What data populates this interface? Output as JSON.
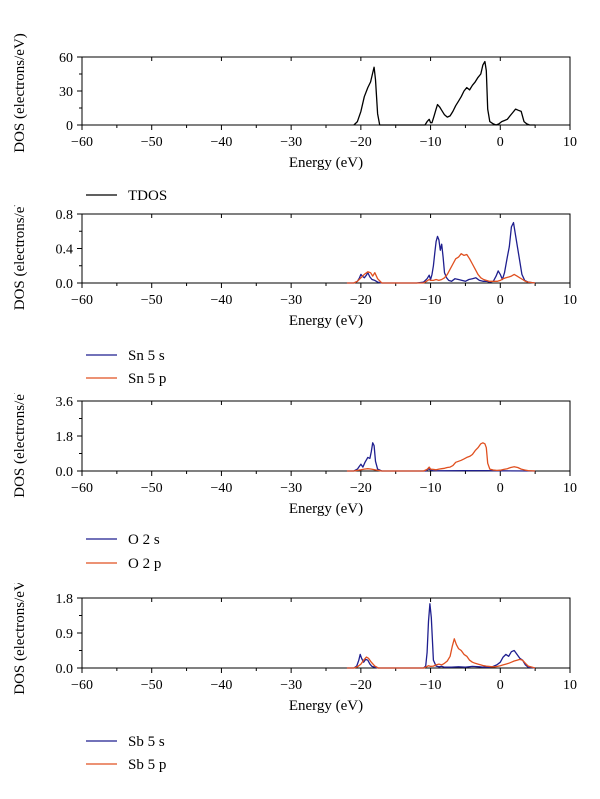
{
  "chart_data": [
    {
      "type": "line",
      "xlabel": "Energy (eV)",
      "ylabel": "DOS (electrons/eV)",
      "xlim": [
        -60,
        10
      ],
      "ylim": [
        0,
        60
      ],
      "xticks": [
        "−60",
        "−50",
        "−40",
        "−30",
        "−20",
        "−10",
        "0",
        "10"
      ],
      "yticks": [
        "0",
        "30",
        "60"
      ],
      "series": [
        {
          "name": "TDOS",
          "color": "#000000",
          "x": [
            -21,
            -20.5,
            -20,
            -19.5,
            -19,
            -18.6,
            -18.3,
            -18.1,
            -17.9,
            -17.6,
            -17.3,
            -17,
            -12,
            -10.8,
            -10.5,
            -10.2,
            -10,
            -9.8,
            -9.5,
            -9.2,
            -9,
            -8.7,
            -8.4,
            -8,
            -7.6,
            -7.2,
            -6.8,
            -6.4,
            -6,
            -5.6,
            -5.2,
            -4.8,
            -4.4,
            -4,
            -3.6,
            -3.2,
            -2.8,
            -2.5,
            -2.2,
            -2,
            -1.8,
            -1.5,
            -1,
            -0.6,
            -0.2,
            0.2,
            0.6,
            1,
            1.4,
            1.8,
            2.2,
            2.6,
            3,
            3.4,
            3.8,
            4.2,
            5
          ],
          "y": [
            0,
            3,
            12,
            25,
            33,
            38,
            46,
            51,
            40,
            10,
            0,
            0,
            0,
            0,
            3,
            5,
            2,
            2,
            8,
            14,
            18,
            16,
            13,
            9,
            7,
            8,
            12,
            17,
            21,
            25,
            30,
            33,
            31,
            35,
            38,
            42,
            45,
            53,
            56,
            48,
            14,
            3,
            1,
            0,
            1,
            3,
            4,
            5,
            8,
            11,
            14,
            13,
            12,
            3,
            1,
            0,
            0
          ]
        }
      ]
    },
    {
      "type": "line",
      "xlabel": "Energy (eV)",
      "ylabel": "DOS (electrons/eV)",
      "xlim": [
        -60,
        10
      ],
      "ylim": [
        0,
        0.8
      ],
      "xticks": [
        "−60",
        "−50",
        "−40",
        "−30",
        "−20",
        "−10",
        "0",
        "10"
      ],
      "yticks": [
        "0.0",
        "0.4",
        "0.8"
      ],
      "series": [
        {
          "name": "Sn 5 s",
          "color": "#1f1f8f",
          "x": [
            -22,
            -21,
            -20.5,
            -20.2,
            -20,
            -19.8,
            -19.5,
            -19.2,
            -19,
            -18.7,
            -18.4,
            -18,
            -17.6,
            -17,
            -12,
            -11,
            -10.5,
            -10.2,
            -10,
            -9.8,
            -9.6,
            -9.4,
            -9.2,
            -9,
            -8.8,
            -8.6,
            -8.4,
            -8.2,
            -8,
            -7.7,
            -7.4,
            -7,
            -6.5,
            -6,
            -5.5,
            -5,
            -4.5,
            -4,
            -3.5,
            -3,
            -2.5,
            -2,
            -1.5,
            -1,
            -0.6,
            -0.3,
            0,
            0.3,
            0.6,
            1,
            1.3,
            1.6,
            1.9,
            2.2,
            2.5,
            2.8,
            3.1,
            3.5,
            4,
            5
          ],
          "y": [
            0,
            0,
            0.02,
            0.06,
            0.1,
            0.08,
            0.06,
            0.09,
            0.12,
            0.07,
            0.04,
            0.03,
            0.01,
            0,
            0,
            0.01,
            0.05,
            0.09,
            0.04,
            0.1,
            0.2,
            0.35,
            0.48,
            0.54,
            0.5,
            0.38,
            0.45,
            0.3,
            0.12,
            0.06,
            0.03,
            0.02,
            0.05,
            0.04,
            0.03,
            0.02,
            0.04,
            0.05,
            0.06,
            0.03,
            0.02,
            0.02,
            0.01,
            0.02,
            0.08,
            0.14,
            0.1,
            0.04,
            0.12,
            0.3,
            0.42,
            0.65,
            0.7,
            0.55,
            0.4,
            0.25,
            0.1,
            0.03,
            0.01,
            0
          ]
        },
        {
          "name": "Sn 5 p",
          "color": "#e05020",
          "x": [
            -22,
            -21,
            -20.5,
            -20,
            -19.5,
            -19,
            -18.6,
            -18.3,
            -18,
            -17.6,
            -17,
            -12,
            -11,
            -10.6,
            -10.2,
            -10,
            -9.6,
            -9.2,
            -8.8,
            -8.4,
            -8,
            -7.6,
            -7.2,
            -6.8,
            -6.4,
            -6,
            -5.6,
            -5.2,
            -4.8,
            -4.4,
            -4,
            -3.6,
            -3.2,
            -2.8,
            -2.4,
            -2,
            -1.6,
            -1.2,
            -0.8,
            -0.4,
            0,
            0.4,
            0.8,
            1.2,
            1.6,
            2,
            2.4,
            2.8,
            3.2,
            3.6,
            4,
            5
          ],
          "y": [
            0,
            0,
            0.02,
            0.06,
            0.1,
            0.13,
            0.12,
            0.08,
            0.12,
            0.05,
            0,
            0,
            0,
            0.02,
            0.04,
            0.03,
            0.03,
            0.04,
            0.03,
            0.04,
            0.06,
            0.1,
            0.16,
            0.22,
            0.28,
            0.3,
            0.34,
            0.32,
            0.33,
            0.28,
            0.22,
            0.16,
            0.1,
            0.06,
            0.04,
            0.03,
            0.02,
            0.02,
            0.02,
            0.02,
            0.03,
            0.05,
            0.06,
            0.07,
            0.08,
            0.1,
            0.08,
            0.06,
            0.04,
            0.02,
            0.01,
            0
          ]
        }
      ]
    },
    {
      "type": "line",
      "xlabel": "Energy (eV)",
      "ylabel": "DOS (electrons/eV)",
      "xlim": [
        -60,
        10
      ],
      "ylim": [
        0,
        3.6
      ],
      "xticks": [
        "−60",
        "−50",
        "−40",
        "−30",
        "−20",
        "−10",
        "0",
        "10"
      ],
      "yticks": [
        "0.0",
        "1.8",
        "3.6"
      ],
      "series": [
        {
          "name": "O 2 s",
          "color": "#1f1f8f",
          "x": [
            -22,
            -21,
            -20.5,
            -20.2,
            -20,
            -19.7,
            -19.4,
            -19,
            -18.7,
            -18.5,
            -18.3,
            -18.1,
            -17.9,
            -17.6,
            -17,
            -10.6,
            -10.3,
            -10,
            -9.7,
            -9,
            -5,
            -2,
            0,
            5
          ],
          "y": [
            0,
            0,
            0.1,
            0.25,
            0.35,
            0.2,
            0.45,
            0.7,
            0.65,
            1.0,
            1.45,
            1.3,
            0.5,
            0.1,
            0,
            0,
            0.12,
            0.05,
            0.02,
            0.01,
            0.02,
            0.02,
            0.01,
            0
          ]
        },
        {
          "name": "O 2 p",
          "color": "#e05020",
          "x": [
            -22,
            -21,
            -20.5,
            -20,
            -19.5,
            -19,
            -18.5,
            -18,
            -17,
            -12,
            -11,
            -10.5,
            -10.2,
            -10,
            -9.6,
            -9.2,
            -8.8,
            -8.4,
            -8,
            -7.6,
            -7.2,
            -6.8,
            -6.4,
            -6,
            -5.6,
            -5.2,
            -4.8,
            -4.4,
            -4,
            -3.6,
            -3.2,
            -2.8,
            -2.5,
            -2.2,
            -2,
            -1.8,
            -1.5,
            -1,
            -0.5,
            0,
            0.5,
            1,
            1.5,
            2,
            2.5,
            3,
            3.5,
            4,
            5
          ],
          "y": [
            0,
            0,
            0.03,
            0.06,
            0.1,
            0.12,
            0.1,
            0.06,
            0,
            0,
            0,
            0.08,
            0.2,
            0.1,
            0.08,
            0.06,
            0.1,
            0.12,
            0.14,
            0.18,
            0.2,
            0.28,
            0.45,
            0.5,
            0.55,
            0.62,
            0.7,
            0.75,
            0.85,
            1.05,
            1.2,
            1.4,
            1.45,
            1.4,
            1.2,
            0.4,
            0.1,
            0.05,
            0.03,
            0.04,
            0.08,
            0.12,
            0.18,
            0.22,
            0.18,
            0.1,
            0.05,
            0.02,
            0
          ]
        }
      ]
    },
    {
      "type": "line",
      "xlabel": "Energy (eV)",
      "ylabel": "DOS (electrons/eV)",
      "xlim": [
        -60,
        10
      ],
      "ylim": [
        0,
        1.8
      ],
      "xticks": [
        "−60",
        "−50",
        "−40",
        "−30",
        "−20",
        "−10",
        "0",
        "10"
      ],
      "yticks": [
        "0.0",
        "0.9",
        "1.8"
      ],
      "series": [
        {
          "name": "Sb 5 s",
          "color": "#1f1f8f",
          "x": [
            -22,
            -21,
            -20.6,
            -20.3,
            -20.1,
            -19.9,
            -19.6,
            -19.3,
            -19,
            -18.7,
            -18.4,
            -18,
            -17.5,
            -12,
            -11,
            -10.7,
            -10.5,
            -10.3,
            -10.1,
            -9.9,
            -9.6,
            -9.2,
            -8.8,
            -8.4,
            -8,
            -7,
            -6,
            -5,
            -4,
            -3,
            -2.5,
            -2,
            -1.5,
            -1,
            -0.5,
            0,
            0.4,
            0.8,
            1.2,
            1.6,
            2,
            2.4,
            2.8,
            3.2,
            3.6,
            4,
            5
          ],
          "y": [
            0,
            0,
            0.05,
            0.2,
            0.35,
            0.25,
            0.15,
            0.22,
            0.2,
            0.1,
            0.04,
            0.02,
            0,
            0,
            0,
            0.05,
            0.4,
            1.2,
            1.65,
            1.3,
            0.2,
            0.05,
            0.03,
            0.04,
            0.02,
            0.02,
            0.03,
            0.02,
            0.04,
            0.03,
            0.02,
            0.02,
            0.02,
            0.04,
            0.08,
            0.15,
            0.28,
            0.35,
            0.3,
            0.42,
            0.45,
            0.35,
            0.25,
            0.2,
            0.08,
            0.02,
            0
          ]
        },
        {
          "name": "Sb 5 p",
          "color": "#e05020",
          "x": [
            -22,
            -21,
            -20.5,
            -20,
            -19.6,
            -19.2,
            -18.9,
            -18.5,
            -18,
            -17.5,
            -12,
            -11,
            -10.6,
            -10.3,
            -10,
            -9.6,
            -9.2,
            -8.8,
            -8.4,
            -8,
            -7.6,
            -7.2,
            -6.9,
            -6.6,
            -6.3,
            -6,
            -5.6,
            -5.2,
            -4.8,
            -4.4,
            -4,
            -3.6,
            -3.2,
            -2.8,
            -2.4,
            -2,
            -1.6,
            -1.2,
            -0.8,
            -0.4,
            0,
            0.4,
            0.8,
            1.2,
            1.6,
            2,
            2.4,
            2.8,
            3.2,
            3.6,
            4,
            5
          ],
          "y": [
            0,
            0,
            0.03,
            0.1,
            0.2,
            0.28,
            0.25,
            0.15,
            0.05,
            0,
            0,
            0,
            0.03,
            0.06,
            0.04,
            0.05,
            0.08,
            0.1,
            0.08,
            0.12,
            0.18,
            0.3,
            0.55,
            0.75,
            0.6,
            0.5,
            0.45,
            0.35,
            0.3,
            0.2,
            0.15,
            0.12,
            0.1,
            0.08,
            0.06,
            0.05,
            0.04,
            0.03,
            0.03,
            0.04,
            0.06,
            0.08,
            0.1,
            0.12,
            0.15,
            0.18,
            0.2,
            0.22,
            0.2,
            0.12,
            0.05,
            0
          ]
        }
      ]
    }
  ]
}
